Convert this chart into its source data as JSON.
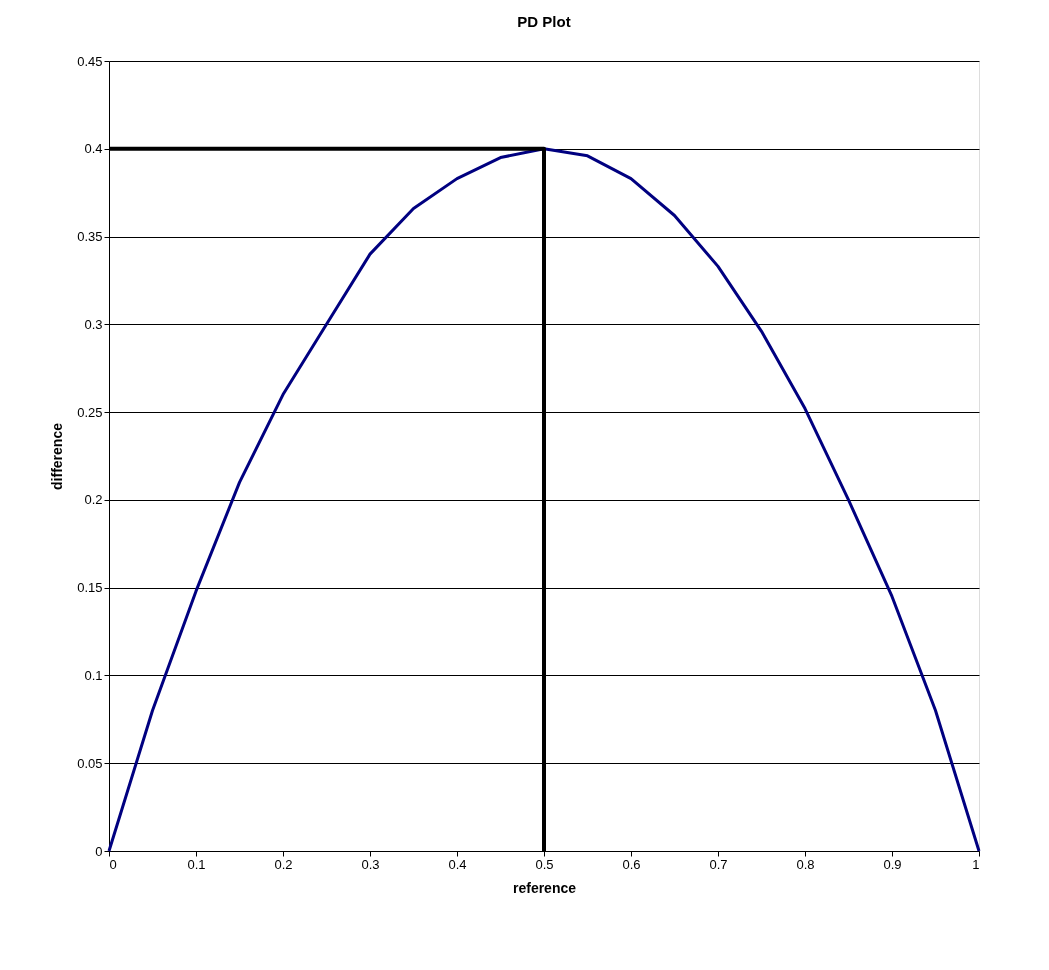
{
  "chart_data": {
    "type": "line",
    "title": "PD Plot",
    "xlabel": "reference",
    "ylabel": "difference",
    "xlim": [
      0,
      1
    ],
    "xticks": [
      0,
      0.1,
      0.2,
      0.3,
      0.4,
      0.5,
      0.6,
      0.7,
      0.8,
      0.9,
      1
    ],
    "ylim": [
      0,
      0.45
    ],
    "yticks": [
      0,
      0.05,
      0.1,
      0.15,
      0.2,
      0.25,
      0.3,
      0.35,
      0.4,
      0.45
    ],
    "grid": "y",
    "legend": false,
    "marker": "none",
    "line_style": "solid",
    "series": [
      {
        "color": "#000080",
        "x": [
          0,
          0.05,
          0.1,
          0.15,
          0.2,
          0.25,
          0.3,
          0.35,
          0.4,
          0.45,
          0.5,
          0.55,
          0.6,
          0.65,
          0.7,
          0.75,
          0.8,
          0.85,
          0.9,
          0.95,
          1
        ],
        "values": [
          0,
          0.08,
          0.148,
          0.21,
          0.26,
          0.3,
          0.34,
          0.366,
          0.383,
          0.395,
          0.4,
          0.396,
          0.383,
          0.362,
          0.333,
          0.296,
          0.252,
          0.2,
          0.145,
          0.08,
          0
        ]
      },
      {
        "color": "#000000",
        "x": [
          0,
          0.5,
          0.5
        ],
        "values": [
          0.4,
          0.4,
          0
        ]
      }
    ]
  }
}
